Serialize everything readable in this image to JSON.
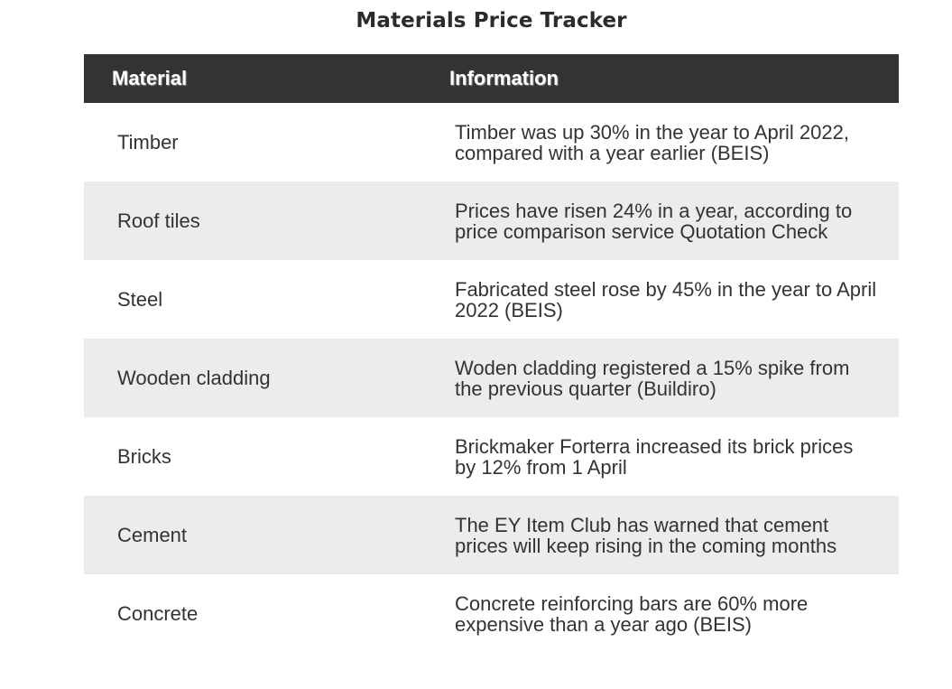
{
  "chart_data": {
    "type": "table",
    "title": "Materials Price Tracker",
    "columns": [
      "Material",
      "Information"
    ],
    "rows": [
      {
        "material": "Timber",
        "information": "Timber was up 30% in the year to April 2022, compared with a year earlier (BEIS)"
      },
      {
        "material": "Roof tiles",
        "information": "Prices have risen 24% in a year, according to price comparison service Quotation Check"
      },
      {
        "material": "Steel",
        "information": "Fabricated steel rose by 45% in the year to April 2022 (BEIS)"
      },
      {
        "material": "Wooden cladding",
        "information": "Woden cladding registered a 15% spike from the previous quarter (Buildiro)"
      },
      {
        "material": "Bricks",
        "information": "Brickmaker Forterra increased its brick prices by 12% from 1 April"
      },
      {
        "material": "Cement",
        "information": "The EY Item Club has warned that cement prices will keep rising in the coming months"
      },
      {
        "material": "Concrete",
        "information": "Concrete reinforcing bars are 60% more expensive than a year ago (BEIS)"
      }
    ]
  },
  "colors": {
    "header_background": "#333333",
    "header_text": "#ffffff",
    "alternate_row": "#ececec",
    "body_text": "#333333"
  }
}
